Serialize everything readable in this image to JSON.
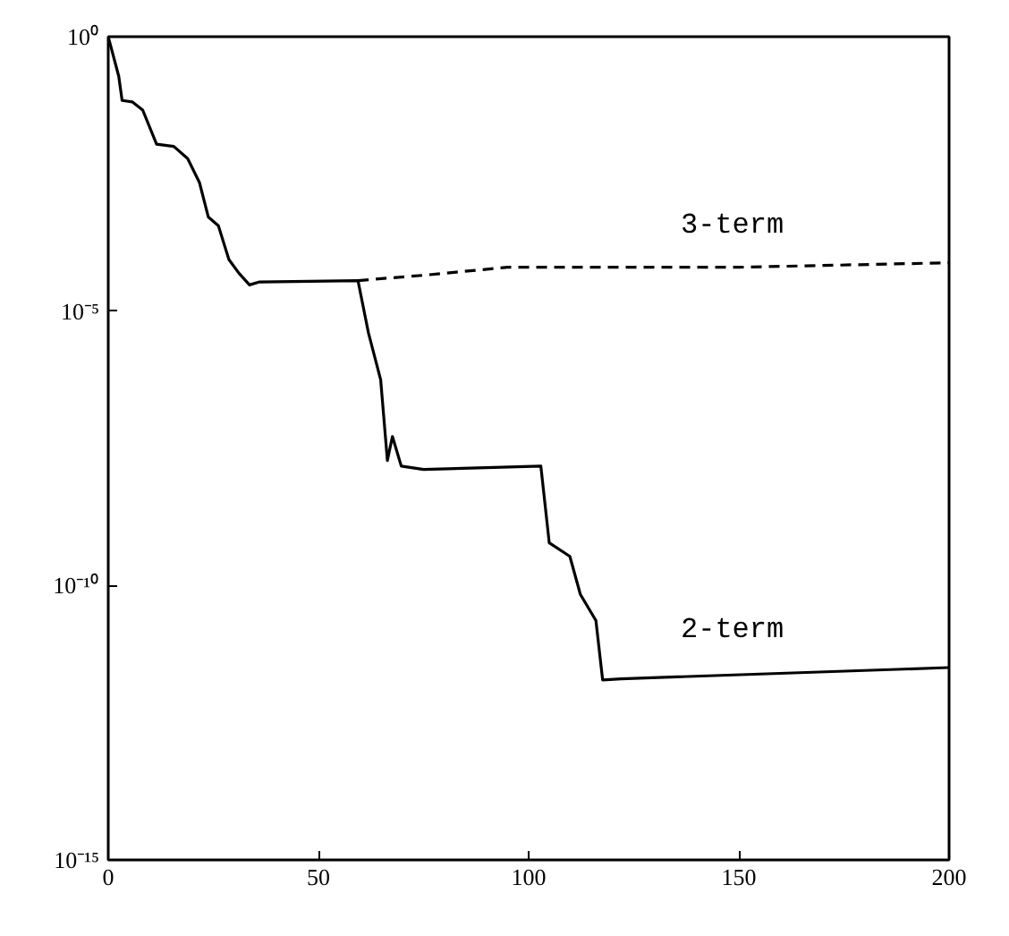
{
  "chart_data": {
    "type": "line",
    "log": "y",
    "grid": false,
    "marker": "none",
    "xlim": [
      0,
      200
    ],
    "xticks": [
      0,
      50,
      100,
      150,
      200
    ],
    "ylim": [
      1e-15,
      1
    ],
    "yticks": [
      {
        "value": 1,
        "label": "10⁰"
      },
      {
        "value": 1e-05,
        "label": "10⁻⁵"
      },
      {
        "value": 1e-10,
        "label": "10⁻¹⁰"
      },
      {
        "value": 1e-15,
        "label": "10⁻¹⁵"
      }
    ],
    "series": [
      {
        "name": "3-term",
        "color": "#000000",
        "line_style": "dashed",
        "x": [
          59.4,
          75,
          95,
          150,
          200
        ],
        "values": [
          3.6e-05,
          4.5e-05,
          6.3e-05,
          6.3e-05,
          7.6e-05
        ]
      },
      {
        "name": "2-term",
        "color": "#000000",
        "line_style": "solid",
        "x": [
          0,
          2.5,
          3.3,
          5.7,
          8.2,
          11.5,
          15.6,
          18.9,
          21.7,
          23.8,
          26.2,
          28.7,
          31.1,
          33.6,
          36,
          59.4,
          61.9,
          64.8,
          66.4,
          67.6,
          69.7,
          75,
          102.9,
          104.9,
          109.8,
          112.3,
          116,
          117.6,
          122,
          200
        ],
        "values": [
          1,
          0.19,
          0.069,
          0.065,
          0.046,
          0.011,
          0.01,
          0.006,
          0.0022,
          0.00052,
          0.00036,
          8.7e-05,
          4.9e-05,
          3e-05,
          3.4e-05,
          3.6e-05,
          4e-06,
          5.6e-07,
          1.9e-08,
          5.2e-08,
          1.5e-08,
          1.3e-08,
          1.5e-08,
          6e-10,
          3.4e-10,
          6.9e-11,
          2.3e-11,
          1.9e-12,
          2e-12,
          3.2e-12
        ]
      }
    ]
  }
}
